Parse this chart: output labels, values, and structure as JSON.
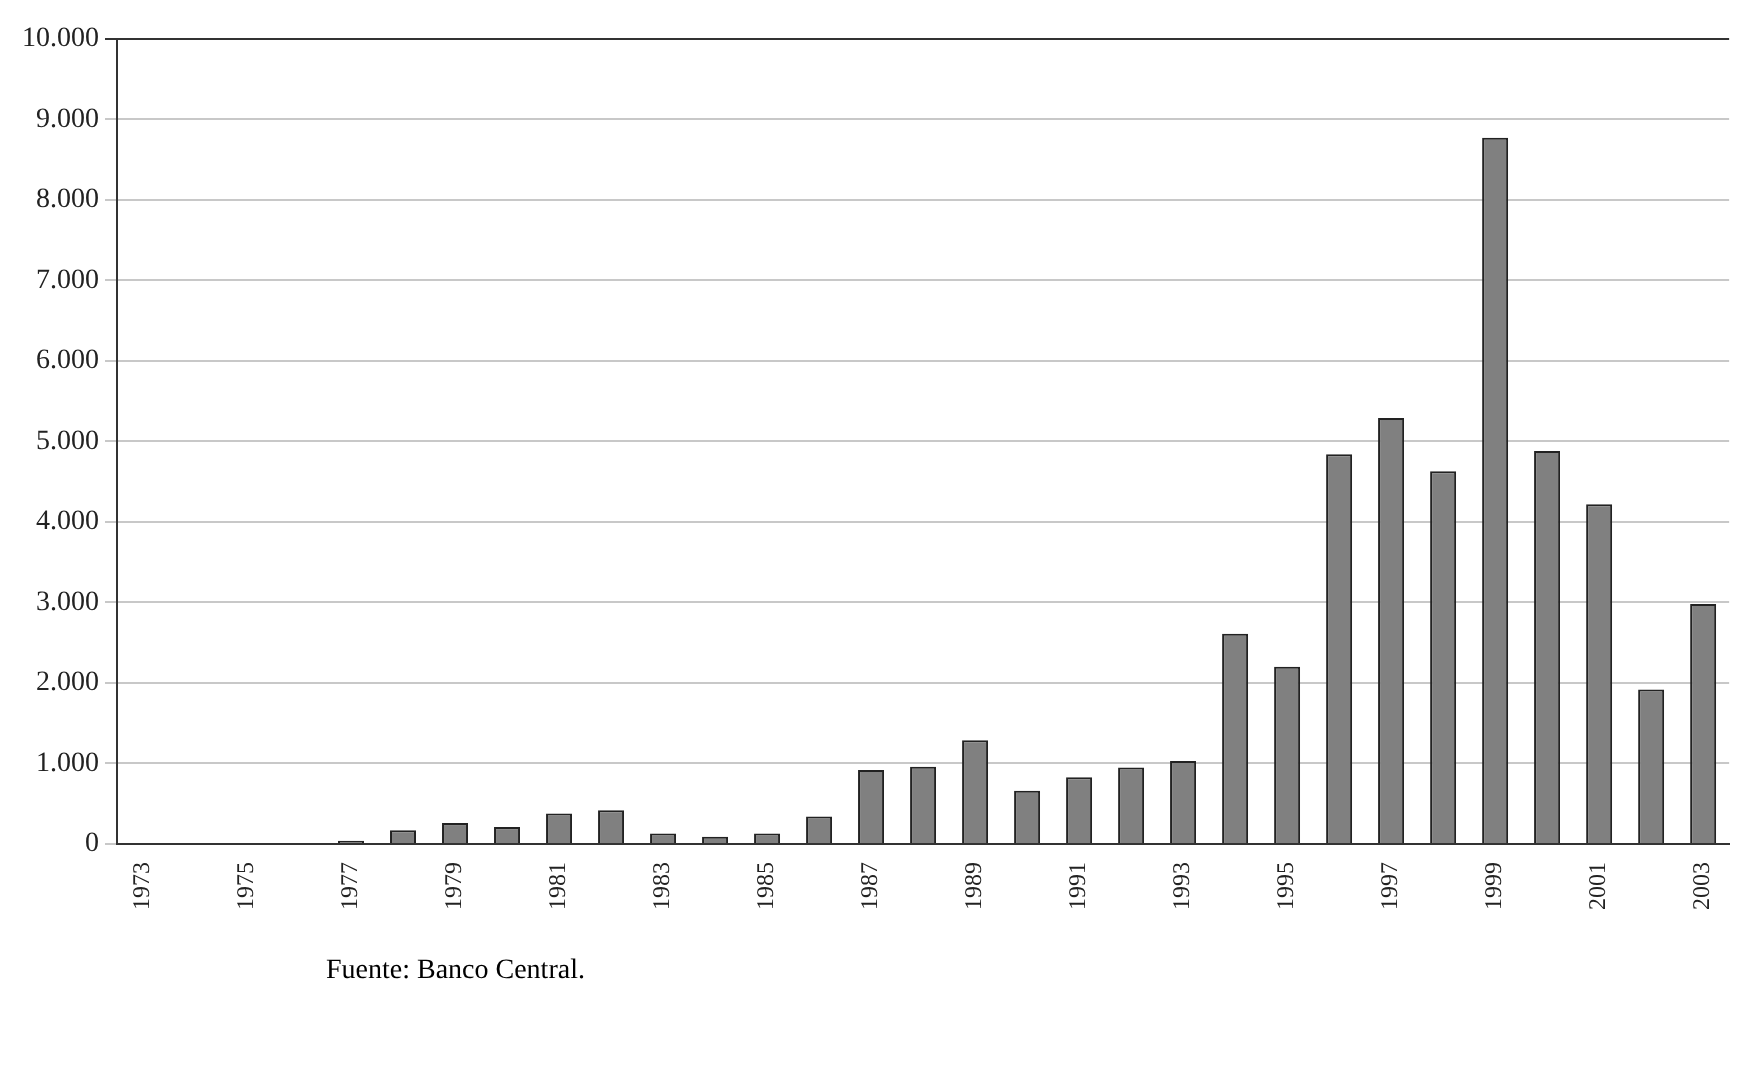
{
  "chart_data": {
    "type": "bar",
    "categories": [
      "1973",
      null,
      "1975",
      null,
      "1977",
      null,
      "1979",
      null,
      "1981",
      null,
      "1983",
      null,
      "1985",
      null,
      "1987",
      null,
      "1989",
      null,
      "1991",
      null,
      "1993",
      null,
      "1995",
      null,
      "1997",
      null,
      "1999",
      null,
      "2001",
      null,
      "2003"
    ],
    "values": [
      0,
      0,
      0,
      0,
      40,
      170,
      260,
      210,
      380,
      420,
      130,
      90,
      130,
      340,
      920,
      960,
      1290,
      660,
      830,
      950,
      1030,
      2610,
      2200,
      4840,
      5290,
      4630,
      8770,
      4880,
      4220,
      1920,
      2980
    ],
    "color": "#808080",
    "ylim": [
      0,
      10000
    ],
    "yticks": [
      {
        "value": 0,
        "label": "0"
      },
      {
        "value": 1000,
        "label": "1.000"
      },
      {
        "value": 2000,
        "label": "2.000"
      },
      {
        "value": 3000,
        "label": "3.000"
      },
      {
        "value": 4000,
        "label": "4.000"
      },
      {
        "value": 5000,
        "label": "5.000"
      },
      {
        "value": 6000,
        "label": "6.000"
      },
      {
        "value": 7000,
        "label": "7.000"
      },
      {
        "value": 8000,
        "label": "8.000"
      },
      {
        "value": 9000,
        "label": "9.000"
      },
      {
        "value": 10000,
        "label": "10.000"
      }
    ],
    "grid": "y",
    "annotations": [
      "Fuente: Banco Central."
    ]
  }
}
